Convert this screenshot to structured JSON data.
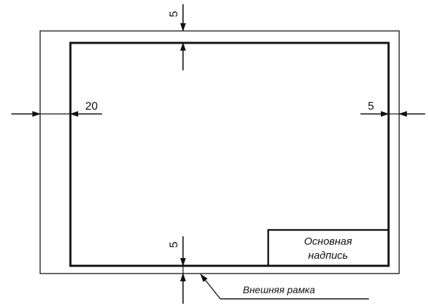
{
  "diagram": {
    "dimensions": {
      "top": "5",
      "left": "20",
      "right": "5",
      "bottom": "5"
    },
    "title_block": {
      "line1": "Основная",
      "line2": "надпись"
    },
    "callout": {
      "label": "Внешняя рамка"
    },
    "colors": {
      "ink": "#111111",
      "paper": "#ffffff"
    }
  }
}
